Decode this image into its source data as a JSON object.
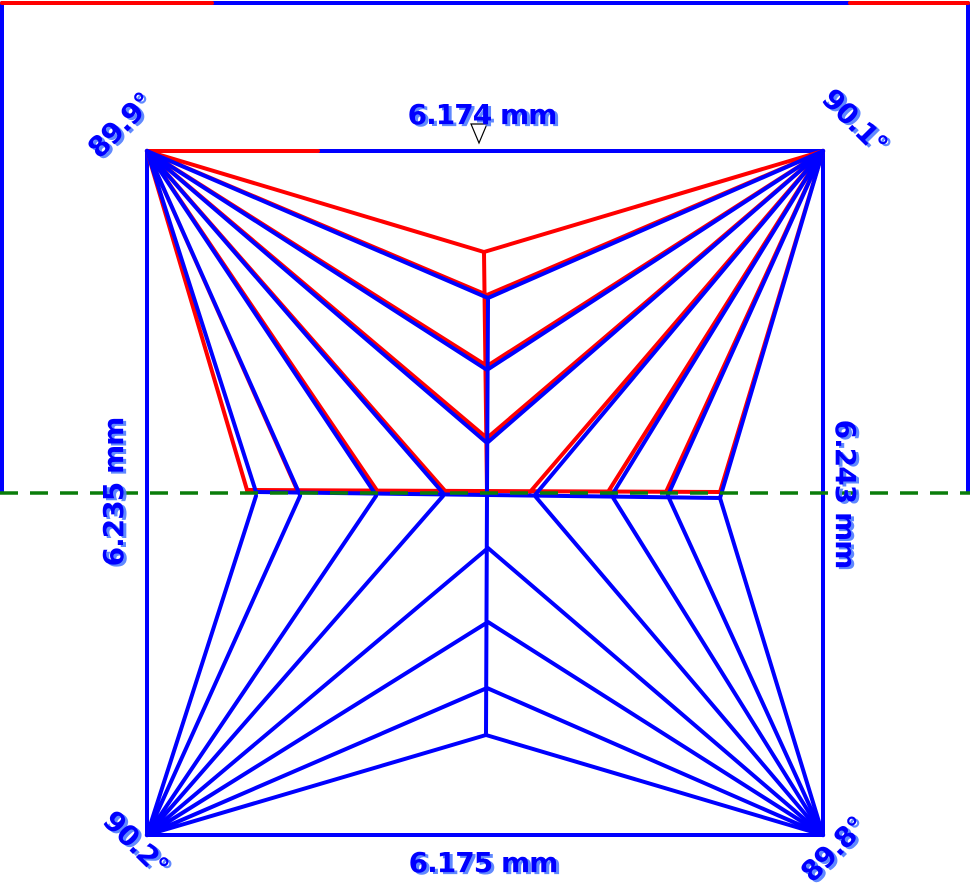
{
  "dimensions": {
    "top_width": "6.174 mm",
    "bottom_width": "6.175 mm",
    "left_height": "6.235 mm",
    "right_height": "6.243 mm"
  },
  "angles": {
    "top_left": "89.9°",
    "top_right": "90.1°",
    "bottom_left": "90.2°",
    "bottom_right": "89.8°"
  },
  "colors": {
    "primary_outline": "#0000ff",
    "overlay_outline": "#ff0000",
    "reference_line": "#0a7d0a",
    "background": "#ffffff"
  },
  "markers": {
    "top_center_marker": "triangle-down-icon"
  }
}
